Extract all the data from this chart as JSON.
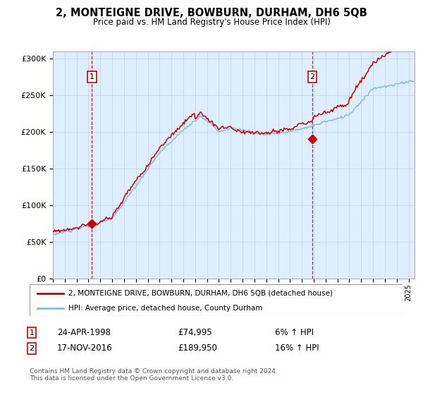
{
  "title": "2, MONTEIGNE DRIVE, BOWBURN, DURHAM, DH6 5QB",
  "subtitle": "Price paid vs. HM Land Registry's House Price Index (HPI)",
  "legend_line1": "2, MONTEIGNE DRIVE, BOWBURN, DURHAM, DH6 5QB (detached house)",
  "legend_line2": "HPI: Average price, detached house, County Durham",
  "annotation1_date": "24-APR-1998",
  "annotation1_price": "£74,995",
  "annotation1_hpi": "6% ↑ HPI",
  "annotation2_date": "17-NOV-2016",
  "annotation2_price": "£189,950",
  "annotation2_hpi": "16% ↑ HPI",
  "footer": "Contains HM Land Registry data © Crown copyright and database right 2024.\nThis data is licensed under the Open Government Licence v3.0.",
  "sale1_year": 1998.29,
  "sale1_value": 74995,
  "sale2_year": 2016.88,
  "sale2_value": 189950,
  "line_color_red": "#cc0000",
  "line_color_blue": "#88bbdd",
  "plot_bg": "#ddeeff",
  "vline_color": "#cc0000",
  "ylim": [
    0,
    310000
  ],
  "xlim_start": 1995.0,
  "xlim_end": 2025.5
}
